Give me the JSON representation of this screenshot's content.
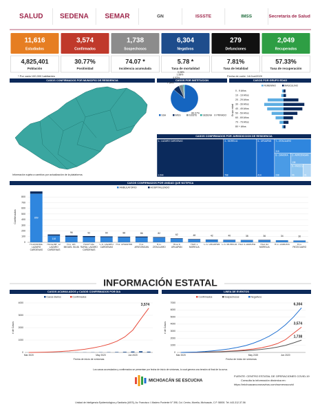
{
  "header": {
    "logos": [
      {
        "text": "SALUD",
        "color": "#9d2449"
      },
      {
        "text": "SEDENA",
        "color": "#9d2449"
      },
      {
        "text": "SEMAR",
        "color": "#9d2449"
      },
      {
        "text": "GN",
        "color": "#444444"
      },
      {
        "text": "ISSSTE",
        "color": "#9d2449"
      },
      {
        "text": "IMSS",
        "color": "#1d6b3a"
      },
      {
        "text": "Secretaría de Salud",
        "color": "#9d2449"
      }
    ]
  },
  "stats": {
    "cards": [
      {
        "value": "11,616",
        "label": "Estudiados",
        "color": "#e67e22"
      },
      {
        "value": "3,574",
        "label": "Confirmados",
        "color": "#c0392b"
      },
      {
        "value": "1,738",
        "label": "Sospechosos",
        "color": "#8c8c8c"
      },
      {
        "value": "6,304",
        "label": "Negativos",
        "color": "#1e4d8c"
      },
      {
        "value": "279",
        "label": "Defunciones",
        "color": "#111111"
      },
      {
        "value": "2,049",
        "label": "Recuperados",
        "color": "#2e9e44"
      }
    ],
    "indicators": [
      {
        "value": "4,825,401",
        "label": "Población"
      },
      {
        "value": "30.77%",
        "label": "Positividad"
      },
      {
        "value": "74.07 *",
        "label": "Incidencia acumulada"
      },
      {
        "value": "5.78 *",
        "label": "Tasa de mortalidad"
      },
      {
        "value": "7.81%",
        "label": "Tasa de letalidad"
      },
      {
        "value": "57.33%",
        "label": "Tasa de recuperación"
      }
    ],
    "note": "* Por cada 100,000 habitantes",
    "date": "Fecha de corte: 14/Jun/2020"
  },
  "map": {
    "title": "CASOS CONFIRMADOS POR MUNICIPIO DE RESIDENCIA",
    "note": "Información sujeta a cambios por actualización de la plataforma."
  },
  "chart_data": [
    {
      "type": "pie",
      "title": "CASOS POR INSTITUCION",
      "categories": [
        "SSA",
        "IMSS",
        "ISSSTE",
        "SEDENA",
        "PRIVADO"
      ],
      "values": [
        86.07,
        7.34,
        4.93,
        1.58,
        0.08
      ],
      "value_labels": [
        "86.07%",
        "7.34%",
        "4.93%",
        "1.58%",
        "0.08%"
      ],
      "colors": [
        "#1565c0",
        "#0b2a5c",
        "#7f8c8d",
        "#26a69a",
        "#bdbdbd"
      ]
    },
    {
      "type": "pyramid",
      "title": "CASOS POR GRUPO EDAD",
      "ylabel": "Grupo edad",
      "categories": [
        "0 - 9 Años",
        "10 - 19 Años",
        "20 - 29 Años",
        "30 - 39 Años",
        "40 - 49 Años",
        "50 - 59 Años",
        "60 - 69 Años",
        "70 - 79 Años",
        "80 + Años"
      ],
      "series": [
        {
          "name": "FEMENINO",
          "color": "#5dade2",
          "values": [
            30,
            45,
            320,
            390,
            330,
            240,
            160,
            80,
            30
          ]
        },
        {
          "name": "MASCULINO",
          "color": "#0b2a5c",
          "values": [
            40,
            50,
            300,
            420,
            380,
            280,
            190,
            100,
            40
          ]
        }
      ],
      "xlim": [
        0,
        500
      ]
    },
    {
      "type": "treemap",
      "title": "CASOS CONFIRMADOS POR JURISDICCION DE RESIDENCIA",
      "categories": [
        "1.- LAZARO CARDENAS",
        "3.- MORELIA",
        "4.- URUAPAN",
        "7.- ZITACUARO",
        "8.- ZAMORA",
        "2.- APATZINGAN",
        "5.- PATZCUARO",
        "6.- LA PIEDAD"
      ],
      "values": [
        1544,
        768,
        414,
        315,
        238,
        138,
        96,
        61
      ],
      "value_labels": [
        "1,544",
        "768",
        "414",
        "315",
        "238",
        "138",
        "96",
        "61"
      ],
      "colors": [
        "#0b2a5c",
        "#1565c0",
        "#1e6fd1",
        "#2f86de",
        "#4a9be6",
        "#6db0ec",
        "#8ec5f0",
        "#b0d6f5"
      ]
    },
    {
      "type": "stacked-bar",
      "title": "CASOS CONFIRMADOS POR UNIDAD QUE NOTIFICA",
      "ylabel": "Confirmados",
      "categories": [
        "H.GENERAL LAZARO CARDENAS",
        "HGSZ/MF 12 LAZARO CARDENAS",
        "H.G. DR. MIGUEL SILVA",
        "HOSPITAL RURAL LAZARO CARDENAS",
        "C.S. LAZARO CARDENAS",
        "H.G. URUAPAN",
        "H.G. APATZINGAN",
        "H.G. ZITACUARO",
        "HGZ 8 URUAPAN",
        "HGR 1 MORELIA",
        "C.S. URUAPAN",
        "C.S. MORELIA",
        "HGZ 4 ZAMORA",
        "HGZ 83 MORELIA",
        "H.G. ZAMORA",
        "H.G. PATZCUARO"
      ],
      "series": [
        {
          "name": "AMBULATORIO",
          "color": "#2f86de",
          "values": [
            859,
            118,
            96,
            92,
            90,
            88,
            86,
            82,
            62,
            48,
            42,
            40,
            38,
            36,
            34,
            30
          ]
        },
        {
          "name": "HOSPITALIZADO",
          "color": "#0b2a5c",
          "values": [
            40,
            20,
            22,
            18,
            14,
            12,
            16,
            10,
            9,
            8,
            6,
            5,
            4,
            6,
            3,
            2
          ]
        }
      ],
      "ylim": [
        0,
        900
      ],
      "yticks": [
        0,
        100,
        200,
        300,
        400,
        500,
        600,
        700,
        800
      ],
      "grid": true
    },
    {
      "type": "line",
      "title": "CASOS ACUMULADOS y CASOS CONFIRMADOS POR DIA",
      "xlabel": "Fecha de inicio de síntomas",
      "ylabel": "# de Casos",
      "categories": [
        "Mar 2020",
        null,
        null,
        null,
        null,
        null,
        null,
        null,
        null,
        "May 2020",
        null,
        null,
        null,
        "Jun 2020",
        null,
        null
      ],
      "series": [
        {
          "name": "Casos diarios",
          "type": "bar",
          "color": "#1e4d8c",
          "values": [
            0,
            1,
            2,
            3,
            5,
            6,
            8,
            10,
            14,
            18,
            22,
            35,
            50,
            70,
            95,
            60
          ]
        },
        {
          "name": "Confirmados",
          "type": "line",
          "color": "#e74c3c",
          "values": [
            1,
            5,
            18,
            40,
            75,
            120,
            180,
            260,
            360,
            490,
            660,
            900,
            1250,
            1800,
            2700,
            3574
          ],
          "end_label": "3,574"
        }
      ],
      "ylim": [
        0,
        4000
      ],
      "yticks": [
        0,
        1000,
        2000,
        3000,
        4000
      ],
      "grid": true
    },
    {
      "type": "line",
      "title": "LINEA DE EVENTOS",
      "xlabel": "Fecha de inicio de síntomas",
      "ylabel": "# de Casos",
      "categories": [
        "Mar 2020",
        null,
        null,
        null,
        null,
        null,
        null,
        null,
        null,
        "May 2020",
        null,
        null,
        null,
        "Jun 2020",
        null,
        null
      ],
      "series": [
        {
          "name": "Confirmados",
          "type": "line",
          "color": "#e74c3c",
          "values": [
            1,
            5,
            18,
            40,
            75,
            120,
            180,
            260,
            360,
            490,
            660,
            900,
            1250,
            1800,
            2700,
            3574
          ],
          "end_label": "3,574"
        },
        {
          "name": "Sospechosos",
          "type": "line",
          "color": "#555555",
          "values": [
            3,
            10,
            25,
            45,
            70,
            100,
            140,
            190,
            250,
            330,
            430,
            560,
            750,
            1000,
            1350,
            1738
          ],
          "end_label": "1,738"
        },
        {
          "name": "Negativos",
          "type": "line",
          "color": "#1e6fd1",
          "values": [
            5,
            20,
            60,
            130,
            230,
            350,
            500,
            700,
            950,
            1300,
            1750,
            2300,
            3000,
            3900,
            5000,
            6304
          ],
          "end_label": "6,304"
        }
      ],
      "ylim": [
        0,
        7000
      ],
      "yticks": [
        0,
        1000,
        2000,
        3000,
        4000,
        5000,
        6000,
        7000
      ],
      "grid": true
    }
  ],
  "section_title": "INFORMACIÓN ESTATAL",
  "footer": {
    "note": "Los casos acumulados y confirmados se presentan por fecha de inicio de síntomas, lo cual genera una tensión al final de la curva.",
    "brand": "MICHOACÁN SE ESCUCHA",
    "source": "FUENTE: CENTRO ESTATAL DE OPERACIONES COVID-19",
    "consult": "Consulta la información dinámica en:",
    "url": "https://michoacancoronavirus.com/numeroscovid",
    "address": "Unidad de Inteligencia Epidemiológica y Sanitaria (UIES), Av. Francisco I. Madero Poniente N° 398, Col. Centro, Morelia, Michoacán, C.P. 58000. Tel. 443-312-37-56"
  }
}
